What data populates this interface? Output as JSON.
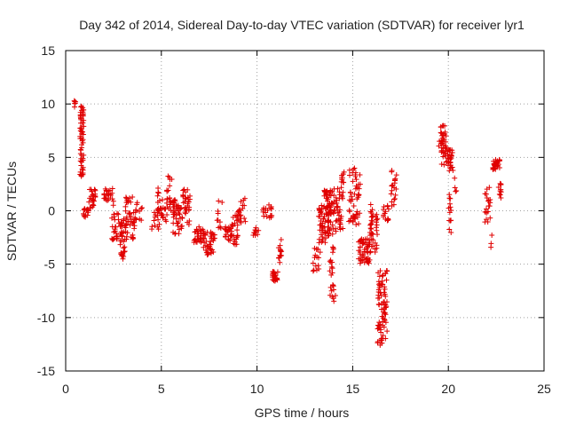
{
  "chart_data": {
    "type": "scatter",
    "title": "Day 342 of 2014, Sidereal Day-to-day VTEC variation (SDTVAR) for receiver lyr1",
    "xlabel": "GPS time / hours",
    "ylabel": "SDTVAR / TECUs",
    "xlim": [
      0,
      25
    ],
    "ylim": [
      -15,
      15
    ],
    "xticks": [
      "0",
      "5",
      "10",
      "15",
      "20",
      "25"
    ],
    "yticks": [
      "15",
      "10",
      "5",
      "0",
      "-5",
      "-10",
      "-15"
    ],
    "grid": true,
    "marker": "plus",
    "color": "#e00000",
    "clusters": [
      {
        "x": [
          0.45,
          0.6
        ],
        "y": [
          9.6,
          10.3
        ],
        "n": 6
      },
      {
        "x": [
          0.75,
          0.95
        ],
        "y": [
          3.2,
          9.8
        ],
        "n": 60
      },
      {
        "x": [
          0.9,
          1.2
        ],
        "y": [
          -0.6,
          0.4
        ],
        "n": 14
      },
      {
        "x": [
          1.2,
          1.6
        ],
        "y": [
          0.2,
          2.1
        ],
        "n": 24
      },
      {
        "x": [
          2.0,
          2.5
        ],
        "y": [
          0.5,
          2.3
        ],
        "n": 24
      },
      {
        "x": [
          2.4,
          2.8
        ],
        "y": [
          -2.8,
          -0.2
        ],
        "n": 24
      },
      {
        "x": [
          2.8,
          3.1
        ],
        "y": [
          -4.6,
          -0.5
        ],
        "n": 36
      },
      {
        "x": [
          3.1,
          3.6
        ],
        "y": [
          -2.8,
          1.6
        ],
        "n": 40
      },
      {
        "x": [
          3.6,
          4.0
        ],
        "y": [
          -1.0,
          0.8
        ],
        "n": 14
      },
      {
        "x": [
          4.5,
          4.9
        ],
        "y": [
          -1.8,
          0.4
        ],
        "n": 14
      },
      {
        "x": [
          4.8,
          5.3
        ],
        "y": [
          -1.0,
          2.2
        ],
        "n": 30
      },
      {
        "x": [
          5.3,
          5.6
        ],
        "y": [
          0.0,
          3.5
        ],
        "n": 16
      },
      {
        "x": [
          5.6,
          6.1
        ],
        "y": [
          -2.2,
          1.4
        ],
        "n": 44
      },
      {
        "x": [
          6.1,
          6.5
        ],
        "y": [
          -1.4,
          2.0
        ],
        "n": 30
      },
      {
        "x": [
          6.7,
          7.2
        ],
        "y": [
          -3.0,
          -1.5
        ],
        "n": 30
      },
      {
        "x": [
          7.2,
          7.8
        ],
        "y": [
          -4.2,
          -2.0
        ],
        "n": 40
      },
      {
        "x": [
          7.9,
          8.2
        ],
        "y": [
          -1.8,
          1.0
        ],
        "n": 10
      },
      {
        "x": [
          8.3,
          8.7
        ],
        "y": [
          -2.8,
          -1.2
        ],
        "n": 24
      },
      {
        "x": [
          8.7,
          9.0
        ],
        "y": [
          -3.2,
          -0.2
        ],
        "n": 20
      },
      {
        "x": [
          9.0,
          9.4
        ],
        "y": [
          -1.2,
          1.2
        ],
        "n": 20
      },
      {
        "x": [
          9.8,
          10.1
        ],
        "y": [
          -2.4,
          -1.4
        ],
        "n": 10
      },
      {
        "x": [
          10.3,
          10.8
        ],
        "y": [
          -0.8,
          0.6
        ],
        "n": 18
      },
      {
        "x": [
          10.8,
          11.1
        ],
        "y": [
          -6.6,
          -5.6
        ],
        "n": 26
      },
      {
        "x": [
          11.1,
          11.3
        ],
        "y": [
          -5.4,
          -2.4
        ],
        "n": 14
      },
      {
        "x": [
          12.9,
          13.3
        ],
        "y": [
          -5.8,
          -3.4
        ],
        "n": 16
      },
      {
        "x": [
          13.2,
          13.6
        ],
        "y": [
          -3.0,
          0.6
        ],
        "n": 40
      },
      {
        "x": [
          13.5,
          14.0
        ],
        "y": [
          -2.4,
          2.0
        ],
        "n": 70
      },
      {
        "x": [
          13.8,
          14.1
        ],
        "y": [
          -8.6,
          -3.4
        ],
        "n": 24
      },
      {
        "x": [
          14.0,
          14.5
        ],
        "y": [
          -2.0,
          2.2
        ],
        "n": 40
      },
      {
        "x": [
          14.4,
          14.6
        ],
        "y": [
          2.6,
          3.8
        ],
        "n": 10
      },
      {
        "x": [
          14.8,
          15.4
        ],
        "y": [
          -1.6,
          4.0
        ],
        "n": 50
      },
      {
        "x": [
          15.3,
          15.9
        ],
        "y": [
          -5.0,
          -2.6
        ],
        "n": 56
      },
      {
        "x": [
          15.9,
          16.3
        ],
        "y": [
          -4.2,
          0.6
        ],
        "n": 40
      },
      {
        "x": [
          16.3,
          16.8
        ],
        "y": [
          -12.6,
          -5.6
        ],
        "n": 80
      },
      {
        "x": [
          16.6,
          16.9
        ],
        "y": [
          -1.0,
          0.6
        ],
        "n": 14
      },
      {
        "x": [
          17.0,
          17.3
        ],
        "y": [
          0.4,
          3.8
        ],
        "n": 20
      },
      {
        "x": [
          19.5,
          19.7
        ],
        "y": [
          5.6,
          6.6
        ],
        "n": 6
      },
      {
        "x": [
          19.6,
          19.9
        ],
        "y": [
          4.0,
          8.3
        ],
        "n": 36
      },
      {
        "x": [
          19.9,
          20.3
        ],
        "y": [
          3.6,
          5.8
        ],
        "n": 30
      },
      {
        "x": [
          20.0,
          20.2
        ],
        "y": [
          -2.8,
          1.6
        ],
        "n": 14
      },
      {
        "x": [
          20.3,
          20.5
        ],
        "y": [
          1.8,
          3.2
        ],
        "n": 4
      },
      {
        "x": [
          21.9,
          22.2
        ],
        "y": [
          -1.2,
          2.2
        ],
        "n": 20
      },
      {
        "x": [
          22.2,
          22.3
        ],
        "y": [
          -3.6,
          -2.2
        ],
        "n": 3
      },
      {
        "x": [
          22.3,
          22.7
        ],
        "y": [
          3.8,
          4.8
        ],
        "n": 30
      },
      {
        "x": [
          22.6,
          22.8
        ],
        "y": [
          1.2,
          3.2
        ],
        "n": 10
      }
    ]
  }
}
